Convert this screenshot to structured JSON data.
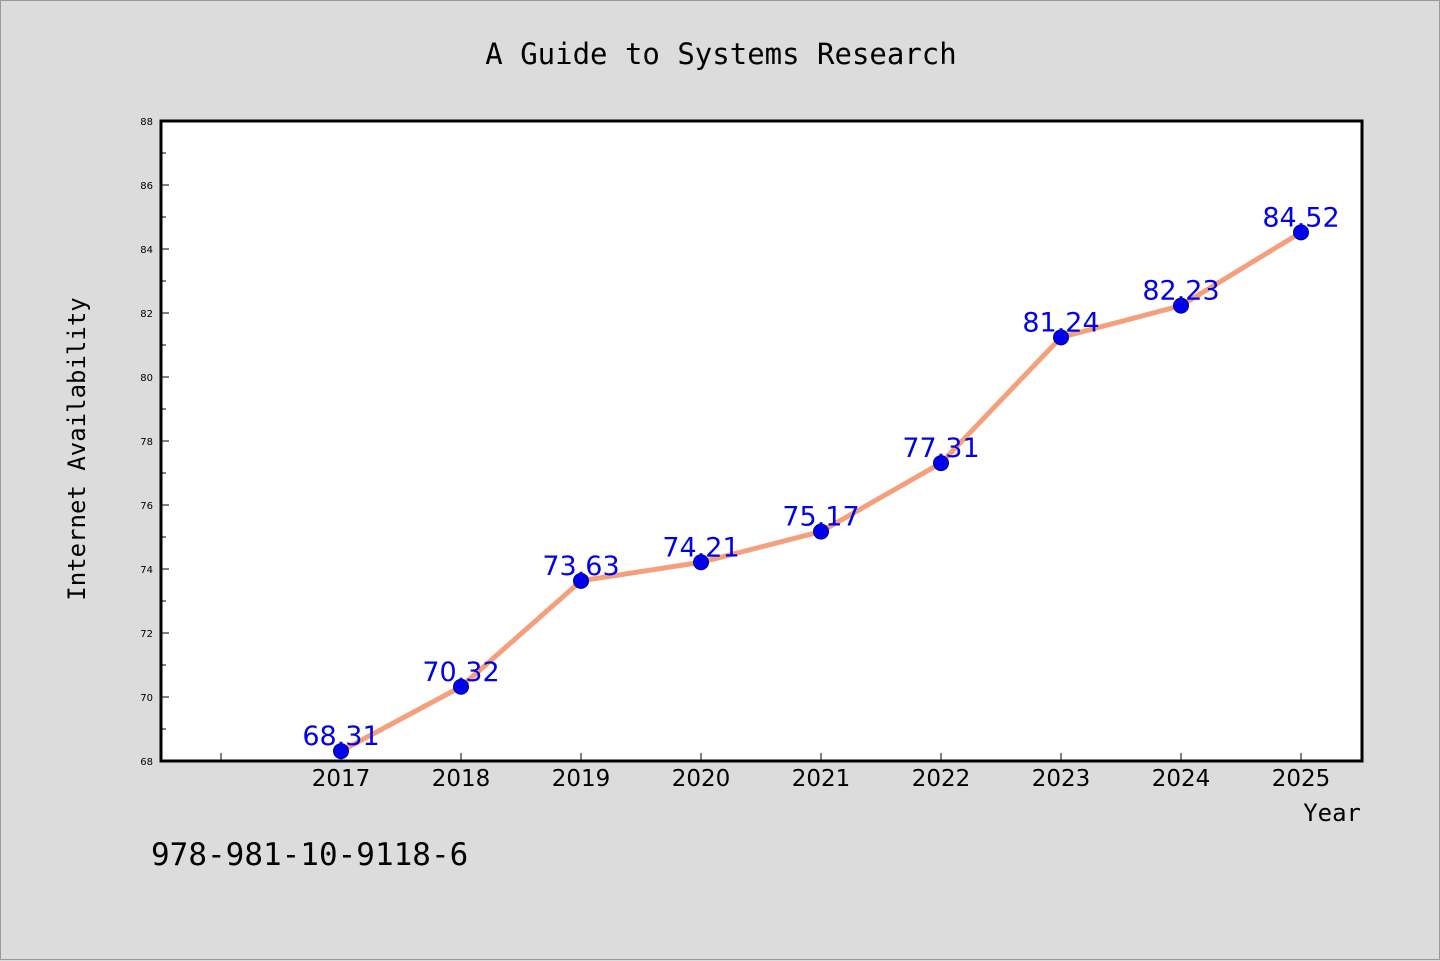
{
  "chart_data": {
    "type": "line",
    "title": "A Guide to Systems Research",
    "xlabel": "Year",
    "ylabel": "Internet Availability",
    "categories": [
      "2017",
      "2018",
      "2019",
      "2020",
      "2021",
      "2022",
      "2023",
      "2024",
      "2025"
    ],
    "series": [
      {
        "values": [
          68.31,
          70.32,
          73.63,
          74.21,
          75.17,
          77.31,
          81.24,
          82.23,
          84.52
        ],
        "line_color": "#f4a07c",
        "marker_color": "#0000ee"
      }
    ],
    "data_labels": [
      "68.31",
      "70.32",
      "73.63",
      "74.21",
      "75.17",
      "77.31",
      "81.24",
      "82.23",
      "84.52"
    ],
    "ylim": [
      68,
      88
    ],
    "yticks": [
      68,
      70,
      72,
      74,
      76,
      78,
      80,
      82,
      84,
      86,
      88
    ],
    "grid": false,
    "legend": "none"
  },
  "footer": {
    "isbn": "978-981-10-9118-6"
  }
}
